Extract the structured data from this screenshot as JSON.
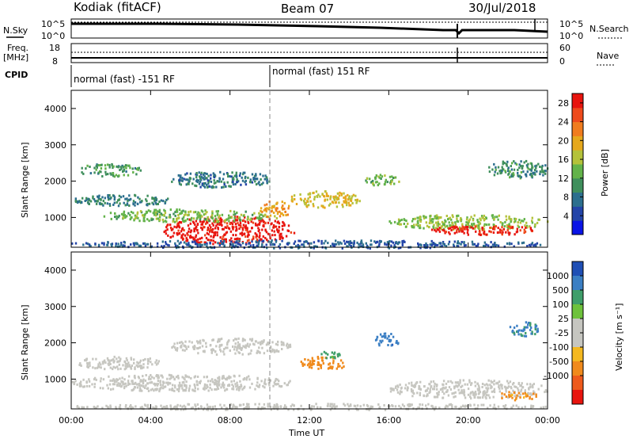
{
  "header": {
    "station": "Kodiak (fitACF)",
    "beam": "Beam 07",
    "date": "30/Jul/2018"
  },
  "top_panels": {
    "nsky_label": "N.Sky",
    "nsearch_label": "N.Search",
    "nsky_ticks": [
      "10^5",
      "10^0"
    ],
    "nsearch_ticks": [
      "10^5",
      "10^0"
    ],
    "freq_label_1": "Freq.",
    "freq_label_2": "[MHz]",
    "freq_ticks": [
      "18",
      "8"
    ],
    "nave_label": "Nave",
    "nave_ticks": [
      "60",
      "0"
    ],
    "cpid_label": "CPID",
    "cpid_1": "normal (fast) -151 RF",
    "cpid_2": "normal (fast) 151 RF"
  },
  "axes": {
    "ylabel": "Slant Range [km]",
    "xlabel": "Time UT",
    "x_ticks": [
      "00:00",
      "04:00",
      "08:00",
      "12:00",
      "16:00",
      "20:00",
      "00:00"
    ],
    "y_ticks": [
      "1000",
      "2000",
      "3000",
      "4000"
    ]
  },
  "power_scale": {
    "label": "Power [dB]",
    "ticks": [
      "4",
      "8",
      "12",
      "16",
      "20",
      "24",
      "28"
    ],
    "colors": [
      "#0a14e6",
      "#2344a8",
      "#2c6f8e",
      "#3f8f5c",
      "#63b34a",
      "#b4c23a",
      "#e6a81c",
      "#f07c1e",
      "#ee4a1c",
      "#e8140e"
    ]
  },
  "velocity_scale": {
    "label": "Velocity [m s⁻¹]",
    "ticks": [
      "1000",
      "500",
      "100",
      "25",
      "-25",
      "-100",
      "-500",
      "-1000"
    ],
    "colors": [
      "#1f4fb5",
      "#3b7fc4",
      "#3f9e6a",
      "#6ec23c",
      "#c6c6c0",
      "#c6c6c0",
      "#f4b820",
      "#f08a1c",
      "#ee5a1c",
      "#e8140e"
    ]
  },
  "chart_data": [
    {
      "type": "heatmap",
      "name": "Power",
      "x_range_hours": [
        0,
        24
      ],
      "y_range_km": [
        180,
        4500
      ],
      "colorbar_range_db": [
        0,
        30
      ],
      "features": [
        {
          "t0": 4.6,
          "t1": 11.2,
          "r0": 300,
          "r1": 1050,
          "value_db": 29
        },
        {
          "t0": 1.5,
          "t1": 10.0,
          "r0": 900,
          "r1": 1250,
          "value_db": 14
        },
        {
          "t0": 0.0,
          "t1": 5.0,
          "r0": 1350,
          "r1": 1650,
          "value_db": 9
        },
        {
          "t0": 5.0,
          "t1": 10.0,
          "r0": 1850,
          "r1": 2300,
          "value_db": 8
        },
        {
          "t0": 0.3,
          "t1": 3.5,
          "r0": 2150,
          "r1": 2500,
          "value_db": 11
        },
        {
          "t0": 9.5,
          "t1": 11.0,
          "r0": 1000,
          "r1": 1500,
          "value_db": 20
        },
        {
          "t0": 11.0,
          "t1": 14.5,
          "r0": 1300,
          "r1": 1750,
          "value_db": 18
        },
        {
          "t0": 14.8,
          "t1": 16.5,
          "r0": 1900,
          "r1": 2200,
          "value_db": 14
        },
        {
          "t0": 16.0,
          "t1": 24.0,
          "r0": 700,
          "r1": 1100,
          "value_db": 15
        },
        {
          "t0": 18.0,
          "t1": 23.5,
          "r0": 550,
          "r1": 800,
          "value_db": 28
        },
        {
          "t0": 21.0,
          "t1": 24.0,
          "r0": 2100,
          "r1": 2600,
          "value_db": 10
        },
        {
          "t0": 0.0,
          "t1": 24.0,
          "r0": 180,
          "r1": 400,
          "value_db": 6
        }
      ]
    },
    {
      "type": "heatmap",
      "name": "Velocity",
      "x_range_hours": [
        0,
        24
      ],
      "y_range_km": [
        180,
        4500
      ],
      "colorbar_range_ms": [
        -1000,
        1000
      ],
      "features": [
        {
          "t0": 0.0,
          "t1": 11.0,
          "r0": 700,
          "r1": 1150,
          "value_ms": 0
        },
        {
          "t0": 5.0,
          "t1": 11.0,
          "r0": 1700,
          "r1": 2150,
          "value_ms": 0
        },
        {
          "t0": 0.3,
          "t1": 4.5,
          "r0": 1300,
          "r1": 1650,
          "value_ms": 0
        },
        {
          "t0": 11.5,
          "t1": 14.0,
          "r0": 1300,
          "r1": 1650,
          "value_ms": -300
        },
        {
          "t0": 12.5,
          "t1": 13.5,
          "r0": 1600,
          "r1": 1800,
          "value_ms": 150
        },
        {
          "t0": 15.3,
          "t1": 16.5,
          "r0": 1900,
          "r1": 2300,
          "value_ms": 800
        },
        {
          "t0": 16.0,
          "t1": 24.0,
          "r0": 500,
          "r1": 1000,
          "value_ms": 0
        },
        {
          "t0": 21.5,
          "t1": 23.5,
          "r0": 450,
          "r1": 700,
          "value_ms": -150
        },
        {
          "t0": 22.0,
          "t1": 23.5,
          "r0": 2200,
          "r1": 2600,
          "value_ms": 600
        },
        {
          "t0": 0.0,
          "t1": 24.0,
          "r0": 180,
          "r1": 350,
          "value_ms": 0
        }
      ]
    }
  ]
}
